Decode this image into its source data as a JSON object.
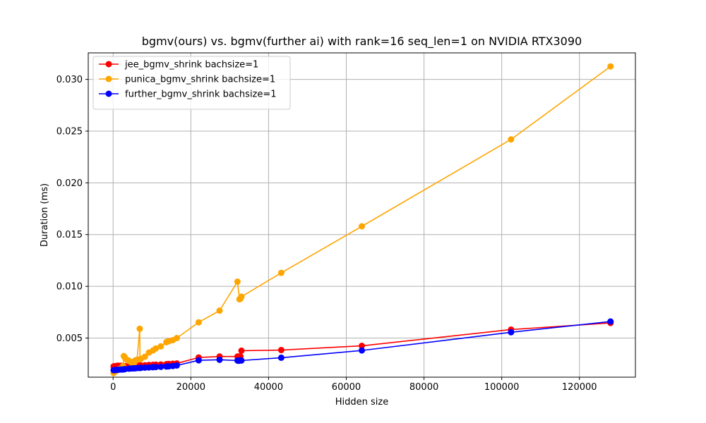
{
  "chart_data": {
    "type": "line",
    "title": "bgmv(ours) vs. bgmv(further ai) with rank=16 seq_len=1 on NVIDIA RTX3090",
    "xlabel": "Hidden size",
    "ylabel": "Duration (ms)",
    "xlim": [
      -6400,
      134400
    ],
    "ylim": [
      0.00122,
      0.03256
    ],
    "xticks": [
      0,
      20000,
      40000,
      60000,
      80000,
      100000,
      120000
    ],
    "xtick_labels": [
      "0",
      "20000",
      "40000",
      "60000",
      "80000",
      "100000",
      "120000"
    ],
    "yticks": [
      0.005,
      0.01,
      0.015,
      0.02,
      0.025,
      0.03
    ],
    "ytick_labels": [
      "0.005",
      "0.010",
      "0.015",
      "0.020",
      "0.025",
      "0.030"
    ],
    "grid": true,
    "legend_position": "upper-left",
    "series": [
      {
        "name": "jee_bgmv_shrink bachsize=1",
        "color": "#ff0000",
        "points": [
          [
            128,
            0.00226
          ],
          [
            256,
            0.00228
          ],
          [
            512,
            0.00227
          ],
          [
            768,
            0.0023
          ],
          [
            1024,
            0.00231
          ],
          [
            1280,
            0.00233
          ],
          [
            1536,
            0.00231
          ],
          [
            2048,
            0.00232
          ],
          [
            2560,
            0.0023
          ],
          [
            2752,
            0.0023
          ],
          [
            3072,
            0.00229
          ],
          [
            4096,
            0.0023
          ],
          [
            4608,
            0.0023
          ],
          [
            5120,
            0.00229
          ],
          [
            5504,
            0.0023
          ],
          [
            5632,
            0.0023
          ],
          [
            6144,
            0.00233
          ],
          [
            6848,
            0.00235
          ],
          [
            6912,
            0.00236
          ],
          [
            7168,
            0.00236
          ],
          [
            8192,
            0.00237
          ],
          [
            9216,
            0.0024
          ],
          [
            10240,
            0.00241
          ],
          [
            11008,
            0.00243
          ],
          [
            12288,
            0.00245
          ],
          [
            13696,
            0.00247
          ],
          [
            13824,
            0.00248
          ],
          [
            14336,
            0.0025
          ],
          [
            15360,
            0.00252
          ],
          [
            16384,
            0.00255
          ],
          [
            22016,
            0.00312
          ],
          [
            27392,
            0.00322
          ],
          [
            32000,
            0.00322
          ],
          [
            32256,
            0.0032
          ],
          [
            32512,
            0.00322
          ],
          [
            32768,
            0.00322
          ],
          [
            33024,
            0.00378
          ],
          [
            43264,
            0.00384
          ],
          [
            64000,
            0.00425
          ],
          [
            102400,
            0.00582
          ],
          [
            128000,
            0.00646
          ]
        ]
      },
      {
        "name": "punica_bgmv_shrink bachsize=1",
        "color": "#ffa500",
        "points": [
          [
            128,
            0.00162
          ],
          [
            256,
            0.00168
          ],
          [
            512,
            0.00175
          ],
          [
            768,
            0.00183
          ],
          [
            1024,
            0.0019
          ],
          [
            1280,
            0.00195
          ],
          [
            1536,
            0.002
          ],
          [
            2048,
            0.0021
          ],
          [
            2560,
            0.0023
          ],
          [
            2752,
            0.00326
          ],
          [
            3072,
            0.0031
          ],
          [
            3584,
            0.0029
          ],
          [
            4096,
            0.0028
          ],
          [
            4608,
            0.00265
          ],
          [
            5120,
            0.0025
          ],
          [
            5504,
            0.00265
          ],
          [
            5632,
            0.00283
          ],
          [
            6144,
            0.0029
          ],
          [
            6848,
            0.0059
          ],
          [
            6912,
            0.00295
          ],
          [
            7168,
            0.003
          ],
          [
            8192,
            0.0032
          ],
          [
            9216,
            0.0036
          ],
          [
            10240,
            0.0038
          ],
          [
            11008,
            0.004
          ],
          [
            12288,
            0.0042
          ],
          [
            13696,
            0.0046
          ],
          [
            13824,
            0.00464
          ],
          [
            14336,
            0.0047
          ],
          [
            15360,
            0.0048
          ],
          [
            16384,
            0.005
          ],
          [
            22016,
            0.00652
          ],
          [
            27392,
            0.00765
          ],
          [
            32000,
            0.01045
          ],
          [
            32512,
            0.00875
          ],
          [
            32768,
            0.0088
          ],
          [
            33024,
            0.009
          ],
          [
            43264,
            0.0113
          ],
          [
            64000,
            0.0158
          ],
          [
            102400,
            0.0242
          ],
          [
            128000,
            0.03125
          ]
        ]
      },
      {
        "name": "further_bgmv_shrink bachsize=1",
        "color": "#0000ff",
        "points": [
          [
            128,
            0.0019
          ],
          [
            256,
            0.0019
          ],
          [
            512,
            0.00191
          ],
          [
            768,
            0.00192
          ],
          [
            1024,
            0.00193
          ],
          [
            1280,
            0.00194
          ],
          [
            1536,
            0.00195
          ],
          [
            2048,
            0.00196
          ],
          [
            2560,
            0.00196
          ],
          [
            2752,
            0.00198
          ],
          [
            3072,
            0.002
          ],
          [
            4096,
            0.00204
          ],
          [
            4608,
            0.00206
          ],
          [
            5120,
            0.00207
          ],
          [
            5504,
            0.00208
          ],
          [
            5632,
            0.00208
          ],
          [
            6144,
            0.0021
          ],
          [
            6848,
            0.00211
          ],
          [
            6912,
            0.00212
          ],
          [
            7168,
            0.00212
          ],
          [
            8192,
            0.00214
          ],
          [
            9216,
            0.00216
          ],
          [
            10240,
            0.00218
          ],
          [
            11008,
            0.0022
          ],
          [
            12288,
            0.00222
          ],
          [
            13696,
            0.00225
          ],
          [
            13824,
            0.00226
          ],
          [
            14336,
            0.00227
          ],
          [
            15360,
            0.0023
          ],
          [
            16384,
            0.00235
          ],
          [
            22016,
            0.00285
          ],
          [
            27392,
            0.0029
          ],
          [
            32000,
            0.00283
          ],
          [
            32256,
            0.0028
          ],
          [
            32512,
            0.00282
          ],
          [
            32768,
            0.00285
          ],
          [
            33024,
            0.00283
          ],
          [
            43264,
            0.0031
          ],
          [
            64000,
            0.0038
          ],
          [
            102400,
            0.00556
          ],
          [
            128000,
            0.0066
          ]
        ]
      }
    ]
  }
}
